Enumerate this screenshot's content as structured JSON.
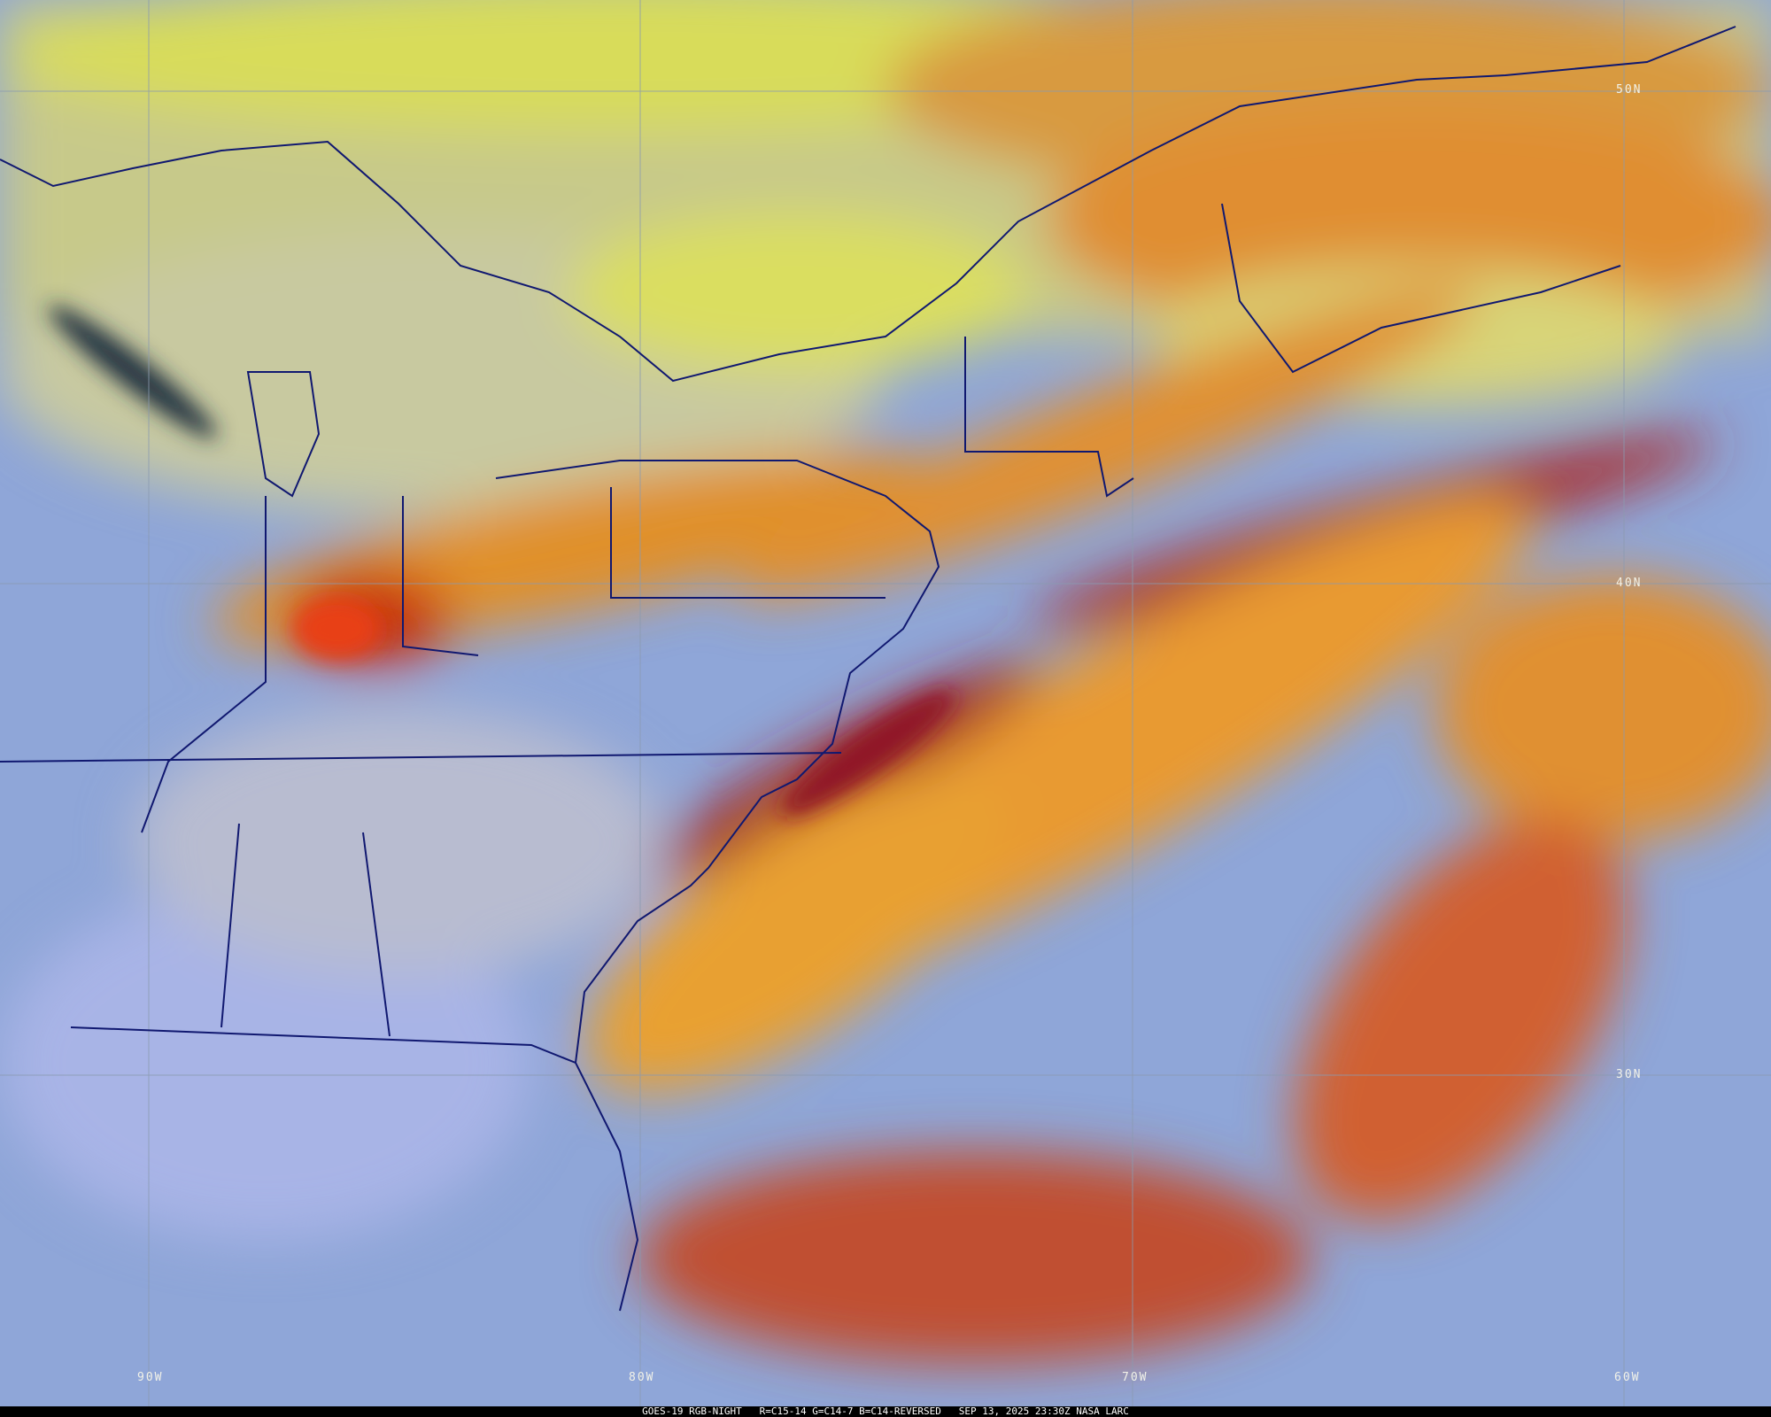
{
  "caption": {
    "satellite": "GOES-19 RGB-NIGHT",
    "channels": "R=C15-14 G=C14-7 B=C14-REVERSED",
    "datetime": "SEP 13, 2025 23:30Z",
    "credit": "NASA LARC"
  },
  "grid": {
    "latitudes": [
      "50N",
      "40N",
      "30N"
    ],
    "longitudes": [
      "90W",
      "80W",
      "70W",
      "60W"
    ]
  },
  "colors": {
    "clear_land_ocean": "#8fa6d8",
    "low_cloud": "#d9dc6e",
    "high_cloud_warm": "#f0a030",
    "high_cloud_cold": "#b02818",
    "boundaries": "#101870",
    "gridlines": "#8a9ab0"
  }
}
